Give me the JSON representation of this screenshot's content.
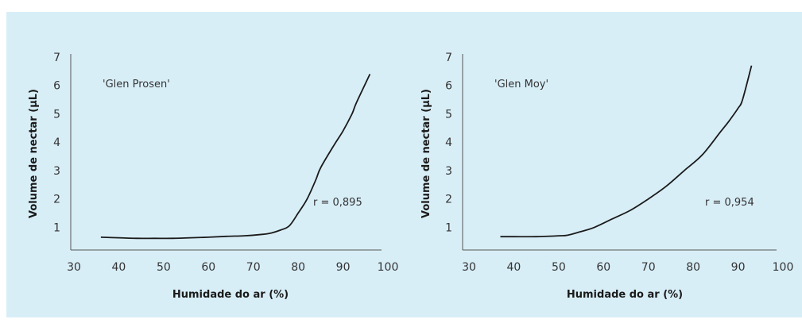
{
  "colors": {
    "background": "#d8eef7",
    "line": "#1a1a1a",
    "axis": "#555555"
  },
  "chart_data": [
    {
      "type": "line",
      "title": "",
      "xlabel": "Humidade do ar (%)",
      "ylabel": "Volume de nectar (µL)",
      "xlim": [
        30,
        100
      ],
      "ylim": [
        0.2,
        7
      ],
      "xticks": [
        "30",
        "40",
        "50",
        "60",
        "70",
        "80",
        "90",
        "100"
      ],
      "yticks": [
        "1",
        "2",
        "3",
        "4",
        "5",
        "6",
        "7"
      ],
      "grid": false,
      "series": [
        {
          "name": "'Glen Prosen'",
          "x": [
            36,
            40,
            44,
            48,
            52,
            56,
            60,
            64,
            68,
            72,
            74,
            76,
            78,
            80,
            82,
            84,
            85,
            88,
            90,
            92,
            93,
            96
          ],
          "y": [
            0.65,
            0.63,
            0.61,
            0.61,
            0.61,
            0.63,
            0.65,
            0.68,
            0.7,
            0.75,
            0.8,
            0.9,
            1.05,
            1.5,
            2.0,
            2.7,
            3.1,
            3.9,
            4.4,
            5.0,
            5.4,
            6.4
          ]
        }
      ],
      "annotation": "r = 0,895"
    },
    {
      "type": "line",
      "title": "",
      "xlabel": "Humidade do ar (%)",
      "ylabel": "Volume de nectar (µL)",
      "xlim": [
        30,
        100
      ],
      "ylim": [
        0.2,
        7
      ],
      "xticks": [
        "30",
        "40",
        "50",
        "60",
        "70",
        "80",
        "90",
        "100"
      ],
      "yticks": [
        "1",
        "2",
        "3",
        "4",
        "5",
        "6",
        "7"
      ],
      "grid": false,
      "series": [
        {
          "name": "'Glen Moy'",
          "x": [
            37,
            40,
            45,
            50,
            52,
            55,
            58,
            62,
            66,
            70,
            74,
            78,
            82,
            86,
            88,
            90,
            91,
            93
          ],
          "y": [
            0.67,
            0.67,
            0.67,
            0.7,
            0.72,
            0.85,
            1.0,
            1.3,
            1.6,
            2.0,
            2.45,
            3.0,
            3.55,
            4.35,
            4.75,
            5.2,
            5.5,
            6.7
          ]
        }
      ],
      "annotation": "r = 0,954"
    }
  ]
}
